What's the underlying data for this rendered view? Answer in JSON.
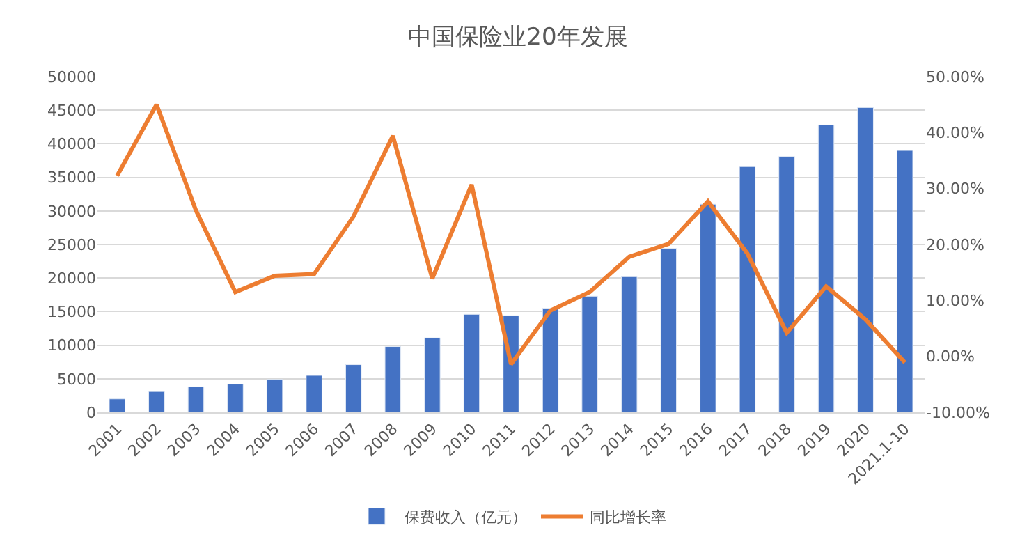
{
  "chart_data": {
    "type": "bar",
    "title": "中国保险业20年发展",
    "categories": [
      "2001",
      "2002",
      "2003",
      "2004",
      "2005",
      "2006",
      "2007",
      "2008",
      "2009",
      "2010",
      "2011",
      "2012",
      "2013",
      "2014",
      "2015",
      "2016",
      "2017",
      "2018",
      "2019",
      "2020",
      "2021.1-10"
    ],
    "series": [
      {
        "name": "保费收入（亿元）",
        "color": "#4472c4",
        "values": [
          2000,
          3100,
          3800,
          4200,
          4900,
          5500,
          7100,
          9800,
          11100,
          14600,
          14400,
          15500,
          17300,
          20200,
          24400,
          31000,
          36600,
          38100,
          42800,
          45400,
          39000
        ]
      },
      {
        "name": "同比增长率",
        "type": "line",
        "axis": "y2",
        "color": "#ed7d31",
        "values": [
          32.3,
          45.0,
          26.1,
          11.5,
          14.4,
          14.7,
          25.0,
          39.4,
          13.9,
          30.7,
          -1.4,
          8.2,
          11.5,
          17.8,
          20.1,
          27.7,
          18.4,
          4.2,
          12.5,
          6.6,
          -1.1
        ]
      }
    ],
    "ylim": [
      0,
      50000
    ],
    "yticks": [
      0,
      5000,
      10000,
      15000,
      20000,
      25000,
      30000,
      35000,
      40000,
      45000,
      50000
    ],
    "y2lim": [
      -10,
      50
    ],
    "y2ticks": [
      {
        "value": -10,
        "label": "-10.00%"
      },
      {
        "value": 0,
        "label": "0.00%"
      },
      {
        "value": 10,
        "label": "10.00%"
      },
      {
        "value": 20,
        "label": "20.00%"
      },
      {
        "value": 30,
        "label": "30.00%"
      },
      {
        "value": 40,
        "label": "40.00%"
      },
      {
        "value": 50,
        "label": "50.00%"
      }
    ],
    "grid": "y",
    "legend": "bottom",
    "marker": "none",
    "line_style": "solid"
  }
}
